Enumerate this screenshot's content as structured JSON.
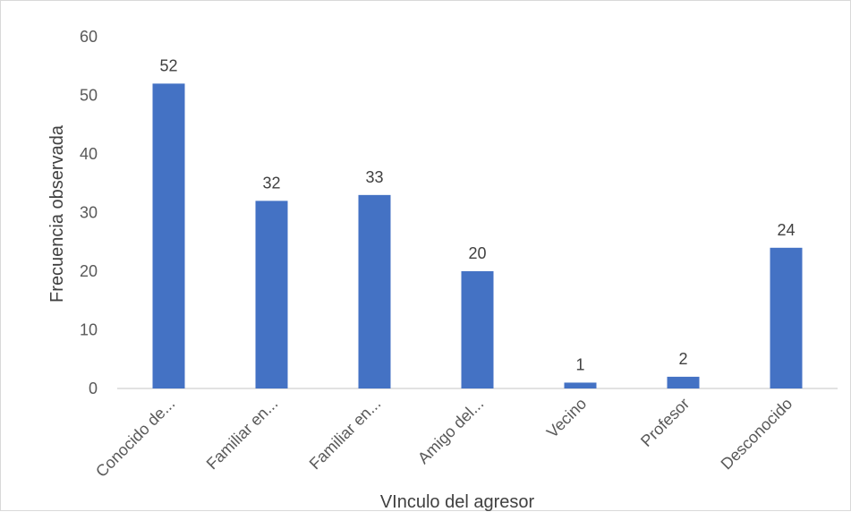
{
  "chart_data": {
    "type": "bar",
    "categories": [
      "Conocido de...",
      "Familiar en...",
      "Familiar en...",
      "Amigo del...",
      "Vecino",
      "Profesor",
      "Desconocido"
    ],
    "values": [
      52,
      32,
      33,
      20,
      1,
      2,
      24
    ],
    "title": "",
    "xlabel": "VInculo del agresor",
    "ylabel": "Frecuencia observada",
    "ylim": [
      0,
      60
    ],
    "yticks": [
      0,
      10,
      20,
      30,
      40,
      50,
      60
    ],
    "grid": false,
    "legend": "none",
    "bar_color": "#4472c4",
    "data_labels": true
  }
}
